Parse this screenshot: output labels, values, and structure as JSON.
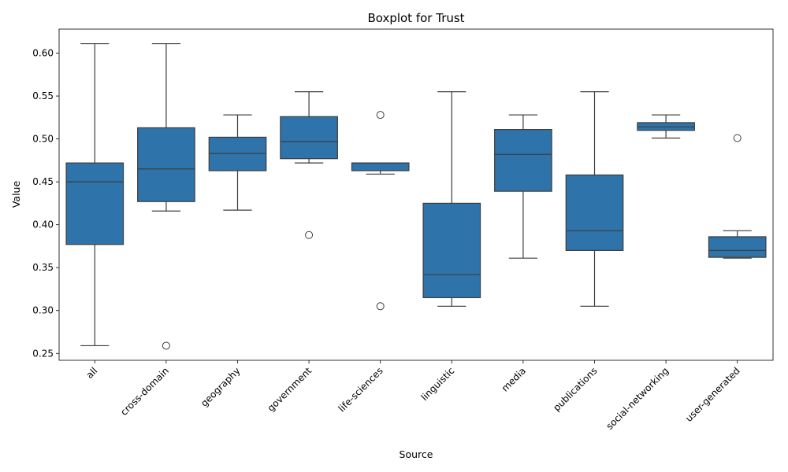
{
  "chart_data": {
    "type": "box",
    "title": "Boxplot for Trust",
    "xlabel": "Source",
    "ylabel": "Value",
    "ylim": [
      0.242,
      0.628
    ],
    "yticks": [
      0.25,
      0.3,
      0.35,
      0.4,
      0.45,
      0.5,
      0.55,
      0.6
    ],
    "ytick_labels": [
      "0.25",
      "0.30",
      "0.35",
      "0.40",
      "0.45",
      "0.50",
      "0.55",
      "0.60"
    ],
    "box_color": "#2e74aa",
    "line_color": "#3d3d3d",
    "categories": [
      "all",
      "cross-domain",
      "geography",
      "government",
      "life-sciences",
      "linguistic",
      "media",
      "publications",
      "social-networking",
      "user-generated"
    ],
    "boxes": [
      {
        "category": "all",
        "whislo": 0.259,
        "q1": 0.377,
        "med": 0.45,
        "q3": 0.472,
        "whishi": 0.611,
        "fliers": []
      },
      {
        "category": "cross-domain",
        "whislo": 0.416,
        "q1": 0.427,
        "med": 0.465,
        "q3": 0.513,
        "whishi": 0.611,
        "fliers": [
          0.259
        ]
      },
      {
        "category": "geography",
        "whislo": 0.417,
        "q1": 0.463,
        "med": 0.483,
        "q3": 0.502,
        "whishi": 0.528,
        "fliers": []
      },
      {
        "category": "government",
        "whislo": 0.472,
        "q1": 0.477,
        "med": 0.497,
        "q3": 0.526,
        "whishi": 0.555,
        "fliers": [
          0.388
        ]
      },
      {
        "category": "life-sciences",
        "whislo": 0.459,
        "q1": 0.463,
        "med": 0.472,
        "q3": 0.472,
        "whishi": 0.472,
        "fliers": [
          0.528,
          0.305
        ]
      },
      {
        "category": "linguistic",
        "whislo": 0.305,
        "q1": 0.315,
        "med": 0.342,
        "q3": 0.425,
        "whishi": 0.555,
        "fliers": []
      },
      {
        "category": "media",
        "whislo": 0.361,
        "q1": 0.439,
        "med": 0.482,
        "q3": 0.511,
        "whishi": 0.528,
        "fliers": []
      },
      {
        "category": "publications",
        "whislo": 0.305,
        "q1": 0.37,
        "med": 0.393,
        "q3": 0.458,
        "whishi": 0.555,
        "fliers": []
      },
      {
        "category": "social-networking",
        "whislo": 0.501,
        "q1": 0.51,
        "med": 0.514,
        "q3": 0.519,
        "whishi": 0.528,
        "fliers": []
      },
      {
        "category": "user-generated",
        "whislo": 0.361,
        "q1": 0.362,
        "med": 0.37,
        "q3": 0.386,
        "whishi": 0.393,
        "fliers": [
          0.501
        ]
      }
    ]
  }
}
